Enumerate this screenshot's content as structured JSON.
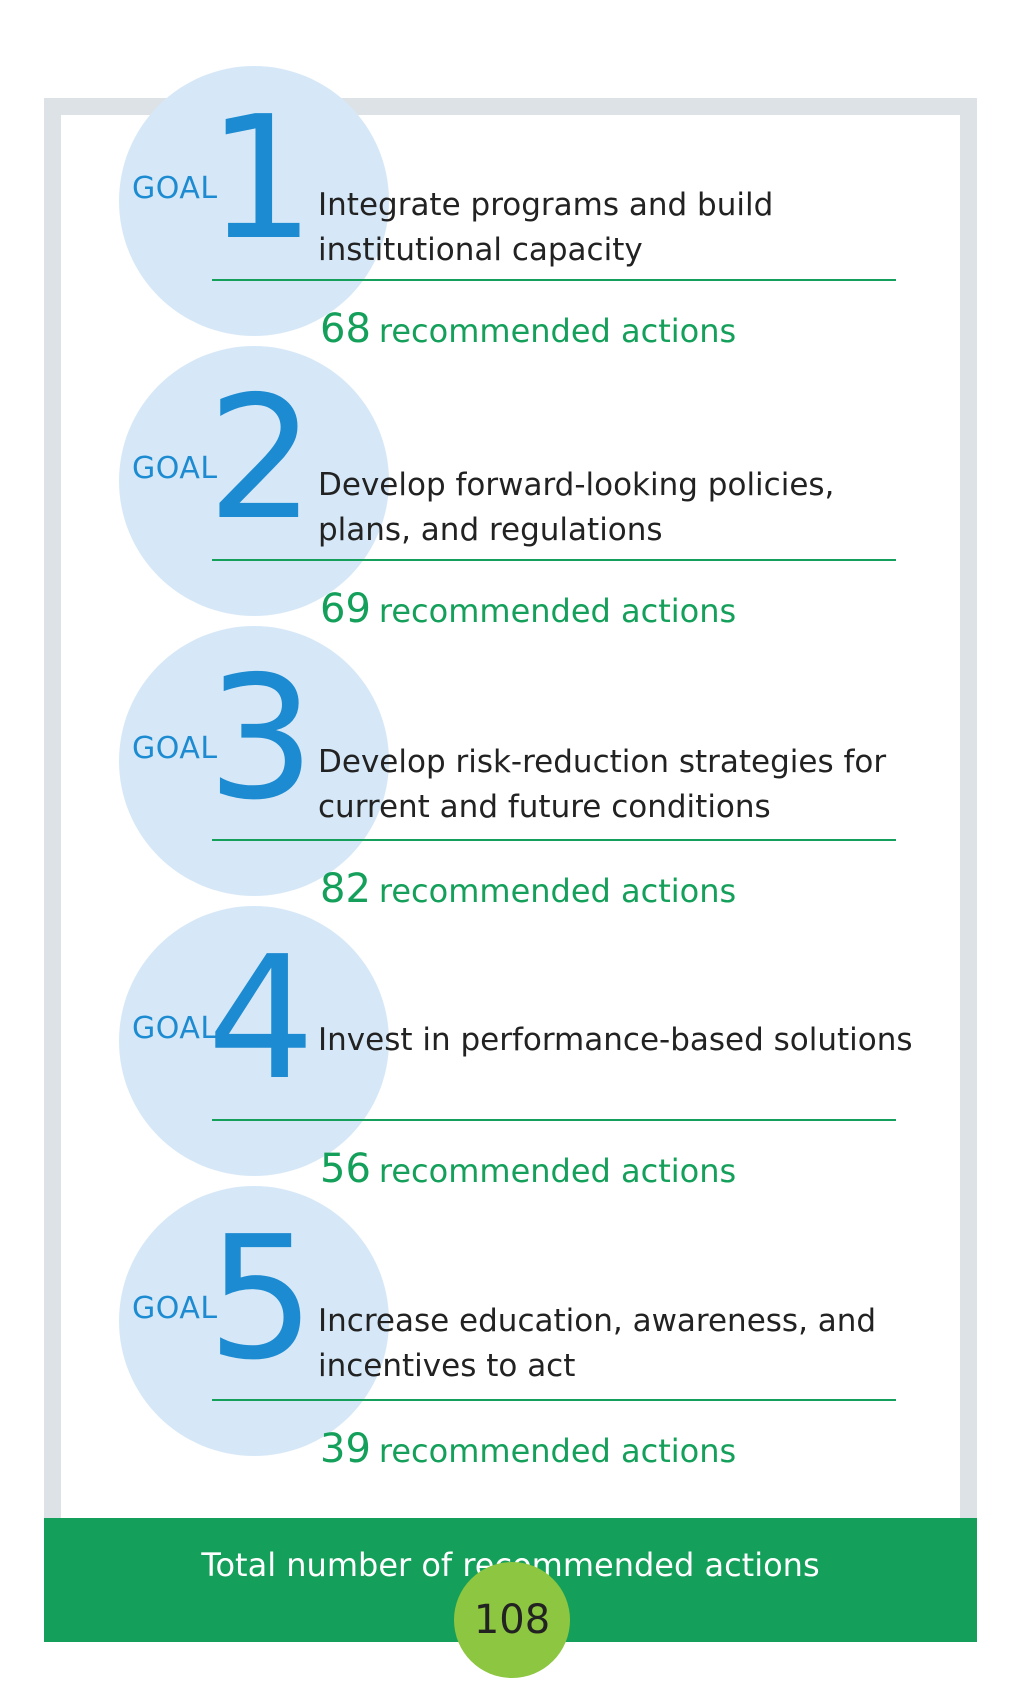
{
  "goals": [
    {
      "goal_word": "GOAL",
      "number": "1",
      "description_line1": "Integrate programs and build",
      "description_line2": "institutional capacity",
      "action_count": "68",
      "action_label": "recommended actions"
    },
    {
      "goal_word": "GOAL",
      "number": "2",
      "description_line1": "Develop forward-looking policies,",
      "description_line2": "plans, and regulations",
      "action_count": "69",
      "action_label": "recommended actions"
    },
    {
      "goal_word": "GOAL",
      "number": "3",
      "description_line1": "Develop risk-reduction strategies for",
      "description_line2": "current and future conditions",
      "action_count": "82",
      "action_label": "recommended actions"
    },
    {
      "goal_word": "GOAL",
      "number": "4",
      "description_line1": "Invest in performance-based solutions",
      "description_line2": "",
      "action_count": "56",
      "action_label": "recommended actions"
    },
    {
      "goal_word": "GOAL",
      "number": "5",
      "description_line1": "Increase education, awareness, and",
      "description_line2": "incentives to act",
      "action_count": "39",
      "action_label": "recommended actions"
    }
  ],
  "total": {
    "label": "Total number of recommended actions",
    "value": "108"
  },
  "colors": {
    "goal_blue": "#1d8bd1",
    "circle_light_blue": "#d6e8f7",
    "action_green": "#14a05a",
    "total_circle_green": "#8dc640",
    "frame_gray": "#dde2e6"
  }
}
